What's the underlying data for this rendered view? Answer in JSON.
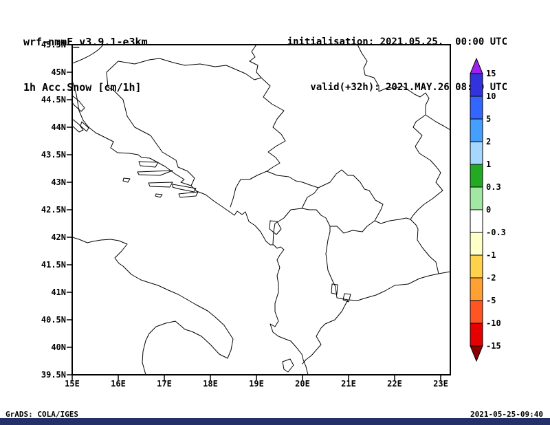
{
  "header": {
    "model_line1": "wrf-nmmE_v3.9.1-e3km",
    "model_line2": "1h Acc.Snow [cm/1h]",
    "init_line": "initialisation: 2021.05.25.  00:00 UTC",
    "valid_line": "valid(+32h): 2021.MAY.26 08:00 UTC"
  },
  "axes": {
    "lat_ticks": [
      "45.5N",
      "45N",
      "44.5N",
      "44N",
      "43.5N",
      "43N",
      "42.5N",
      "42N",
      "41.5N",
      "41N",
      "40.5N",
      "40N",
      "39.5N"
    ],
    "lon_ticks": [
      "15E",
      "16E",
      "17E",
      "18E",
      "19E",
      "20E",
      "21E",
      "22E",
      "23E"
    ]
  },
  "colorbar": {
    "labels": [
      "15",
      "10",
      "5",
      "2",
      "1",
      "0.3",
      "0",
      "-0.3",
      "-1",
      "-2",
      "-5",
      "-10",
      "-15"
    ],
    "arrow_top_color": "#a020f0",
    "arrow_bottom_color": "#8b0000",
    "segments": [
      "#3333dd",
      "#3366ff",
      "#44a0ff",
      "#a6d8ff",
      "#22aa22",
      "#a2e8a2",
      "#ffffff",
      "#ffffc8",
      "#ffd24b",
      "#ffa033",
      "#ff5522",
      "#e60000"
    ]
  },
  "footer": {
    "left": "GrADS: COLA/IGES",
    "right": "2021-05-25-09:40"
  },
  "chart_data": {
    "type": "heatmap",
    "title": "wrf-nmmE_v3.9.1-e3km  1h Acc.Snow [cm/1h]",
    "initialisation": "2021.05.25.  00:00 UTC",
    "valid": "valid(+32h): 2021.MAY.26 08:00 UTC",
    "xlabel": "",
    "ylabel": "",
    "xlim": [
      15.0,
      23.2
    ],
    "ylim": [
      39.5,
      45.5
    ],
    "x_tick_labels": [
      "15E",
      "16E",
      "17E",
      "18E",
      "19E",
      "20E",
      "21E",
      "22E",
      "23E"
    ],
    "y_tick_labels": [
      "39.5N",
      "40N",
      "40.5N",
      "41N",
      "41.5N",
      "42N",
      "42.5N",
      "43N",
      "43.5N",
      "44N",
      "44.5N",
      "45N",
      "45.5N"
    ],
    "units": "cm/1h",
    "levels": [
      -15,
      -10,
      -5,
      -2,
      -1,
      -0.3,
      0,
      0.3,
      1,
      2,
      5,
      10,
      15
    ],
    "level_colors_top_to_bottom": [
      "#a020f0",
      "#3333dd",
      "#3366ff",
      "#44a0ff",
      "#a6d8ff",
      "#22aa22",
      "#a2e8a2",
      "#ffffff",
      "#ffffc8",
      "#ffd24b",
      "#ffa033",
      "#ff5522",
      "#e60000",
      "#8b0000"
    ],
    "legend_position": "right colorbar",
    "grid": false,
    "field_summary": "1h accumulated snow equals 0 (white bin between -0.3 and 0.3) over the entire Adriatic/Balkan domain; only coastlines and country borders are drawn",
    "region": "Adriatic Sea and western Balkans (Italy, Croatia, Bosnia, Serbia, Montenegro, Kosovo, Albania, North Macedonia)"
  }
}
